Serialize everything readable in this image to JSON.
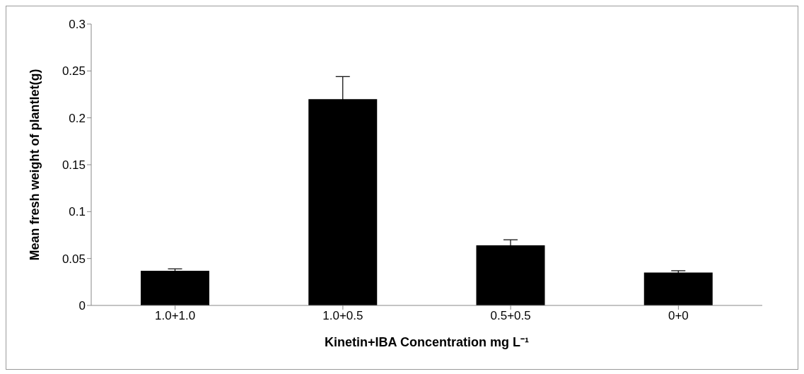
{
  "chart_data": {
    "type": "bar",
    "categories": [
      "1.0+1.0",
      "1.0+0.5",
      "0.5+0.5",
      "0+0"
    ],
    "values": [
      0.037,
      0.22,
      0.064,
      0.035
    ],
    "errors": [
      0.002,
      0.024,
      0.006,
      0.002
    ],
    "color": "#000000",
    "xlabel": "Kinetin+IBA Concentration mg L⁻¹",
    "ylabel": "Mean fresh weight of plantlet(g)",
    "ylim": [
      0,
      0.3
    ],
    "yticks": [
      0,
      0.05,
      0.1,
      0.15,
      0.2,
      0.25,
      0.3
    ],
    "grid": false,
    "legend": false
  }
}
